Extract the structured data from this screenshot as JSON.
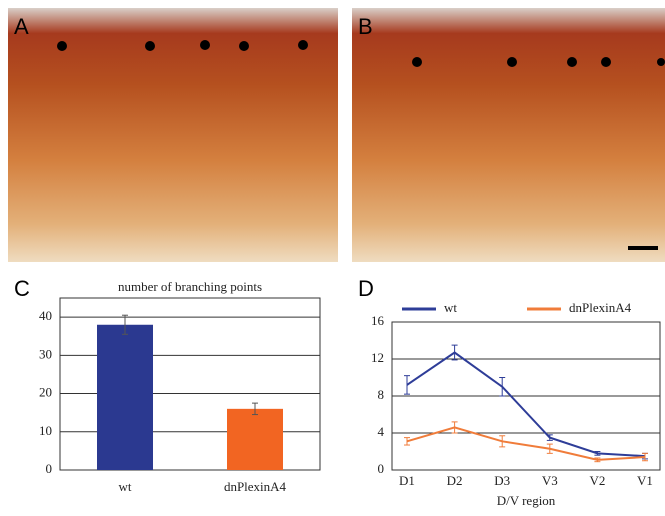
{
  "panel_labels": [
    "A",
    "B",
    "C",
    "D"
  ],
  "chart_data": [
    {
      "type": "bar",
      "title": "number of branching points",
      "categories": [
        "wt",
        "dnPlexinA4"
      ],
      "values": [
        38,
        16
      ],
      "errors": [
        2.5,
        1.5
      ],
      "colors": [
        "#2b3990",
        "#f26522"
      ],
      "ylim": [
        0,
        45
      ],
      "yticks": [
        0,
        10,
        20,
        30,
        40
      ],
      "grid": true
    },
    {
      "type": "line",
      "x_label": "D/V region",
      "categories": [
        "D1",
        "D2",
        "D3",
        "V3",
        "V2",
        "V1"
      ],
      "series": [
        {
          "name": "wt",
          "color": "#2e3d98",
          "values": [
            9.2,
            12.7,
            9,
            3.5,
            1.8,
            1.5
          ],
          "errors": [
            1,
            0.8,
            1,
            0.3,
            0.2,
            0.3
          ]
        },
        {
          "name": "dnPlexinA4",
          "color": "#f07c3a",
          "values": [
            3.1,
            4.6,
            3.1,
            2.3,
            1.1,
            1.4
          ],
          "errors": [
            0.4,
            0.6,
            0.6,
            0.5,
            0.2,
            0.4
          ]
        }
      ],
      "ylim": [
        0,
        16
      ],
      "yticks": [
        0,
        4,
        8,
        12,
        16
      ],
      "grid": true,
      "legend": "top"
    }
  ]
}
